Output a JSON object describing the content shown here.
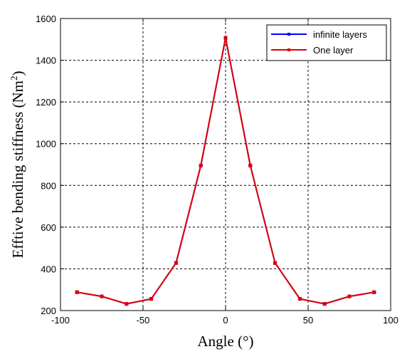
{
  "chart_data": {
    "type": "line",
    "xlabel": "Angle (°)",
    "ylabel": "Efftive bending stiffness (Nm",
    "ylabel_sup": "2",
    "ylabel_close": ")",
    "xlim": [
      -100,
      100
    ],
    "ylim": [
      200,
      1600
    ],
    "xticks": [
      -100,
      -50,
      0,
      50,
      100
    ],
    "yticks": [
      200,
      400,
      600,
      800,
      1000,
      1200,
      1400,
      1600
    ],
    "grid": true,
    "legend_position": "top-right",
    "x": [
      -90,
      -75,
      -60,
      -45,
      -30,
      -15,
      0,
      15,
      30,
      45,
      60,
      75,
      90
    ],
    "series": [
      {
        "name": "infinite layers",
        "color": "#0000ff",
        "marker": "square",
        "values": [
          288,
          268,
          232,
          256,
          428,
          895,
          1507,
          895,
          428,
          256,
          232,
          268,
          288
        ]
      },
      {
        "name": "One layer",
        "color": "#e00000",
        "marker": "square",
        "values": [
          288,
          268,
          232,
          256,
          428,
          895,
          1507,
          895,
          428,
          256,
          232,
          268,
          288
        ]
      }
    ]
  }
}
